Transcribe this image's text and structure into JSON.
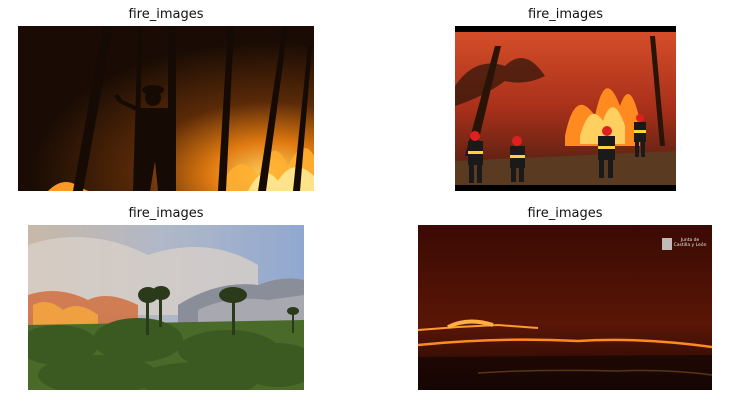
{
  "grid": {
    "panels": [
      {
        "title": "fire_images",
        "scene": "firefighter silhouette in burning forest at night"
      },
      {
        "title": "fire_images",
        "scene": "firefighters with red helmets fighting forest fire"
      },
      {
        "title": "fire_images",
        "scene": "wildfire smoke over pine trees and mountains"
      },
      {
        "title": "fire_images",
        "scene": "night fire lines on hillside",
        "logo_text": "Junta de Castilla y León"
      }
    ]
  }
}
